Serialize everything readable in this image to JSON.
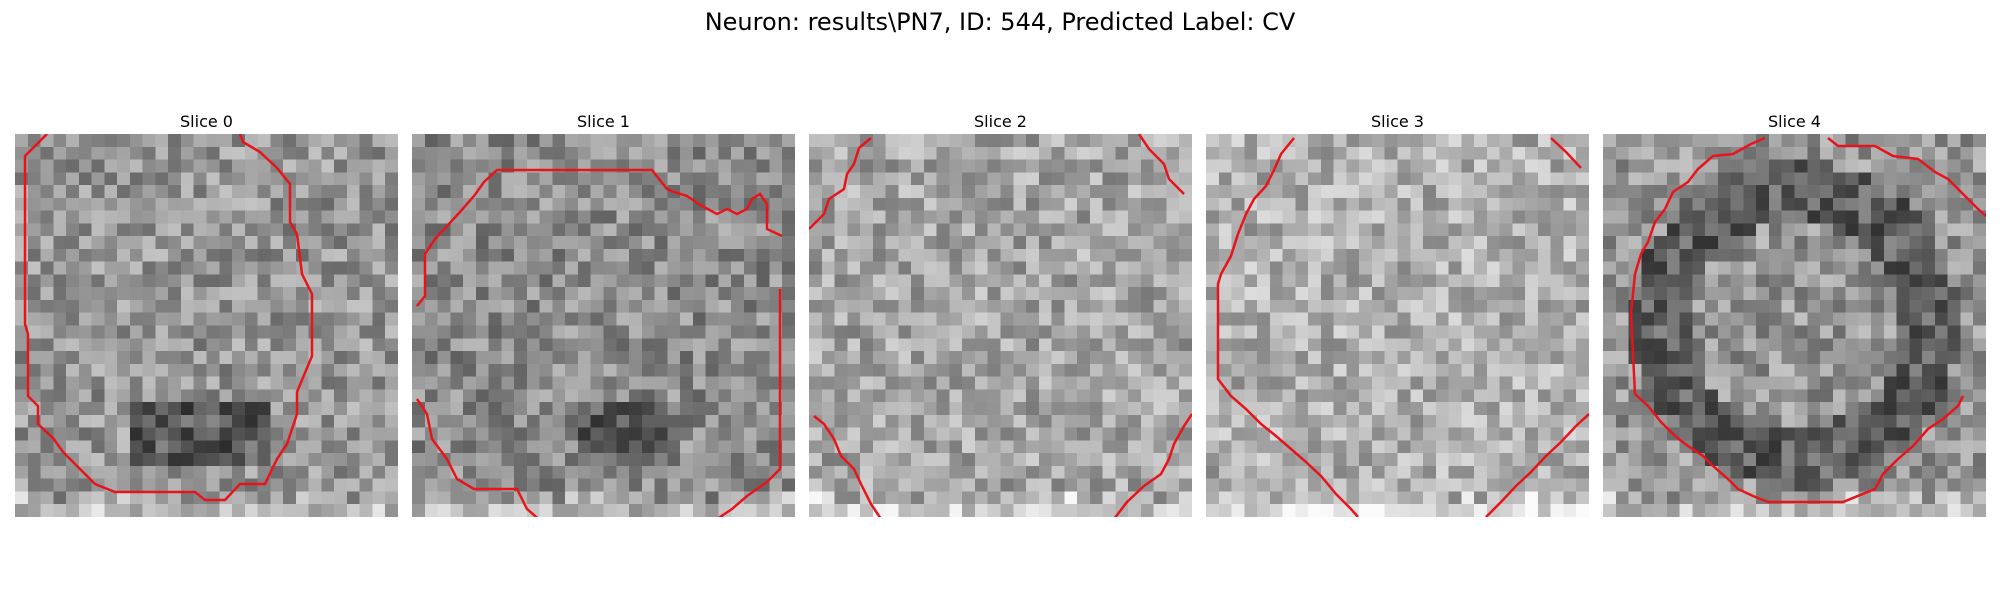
{
  "figure": {
    "title": "Neuron: results\\PN7, ID: 544, Predicted Label: CV"
  },
  "panels": [
    {
      "title": "Slice 0",
      "contour_color": "#e8141b"
    },
    {
      "title": "Slice 1",
      "contour_color": "#e8141b"
    },
    {
      "title": "Slice 2",
      "contour_color": "#e8141b"
    },
    {
      "title": "Slice 3",
      "contour_color": "#e8141b"
    },
    {
      "title": "Slice 4",
      "contour_color": "#e8141b"
    }
  ]
}
